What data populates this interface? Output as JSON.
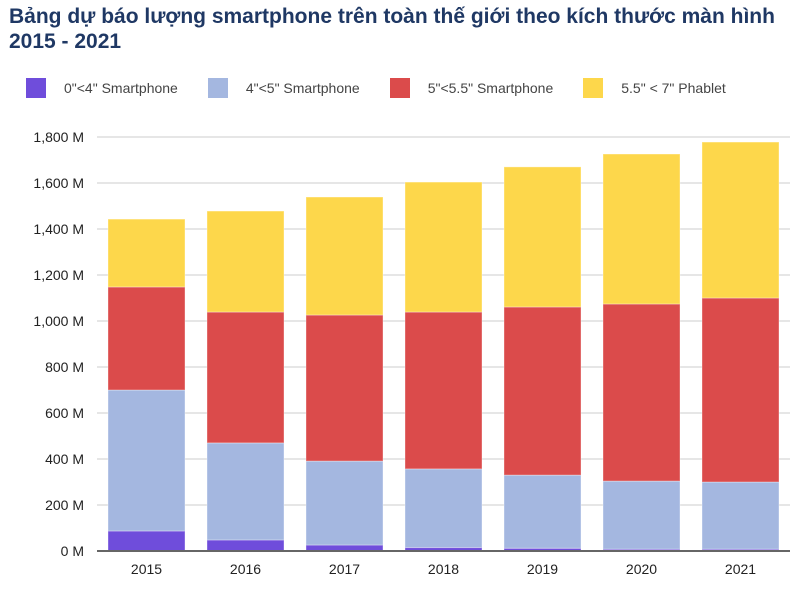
{
  "chart_data": {
    "type": "bar",
    "stacked": true,
    "title": "Bảng dự báo lượng smartphone trên toàn thế giới theo kích thước màn hình 2015 - 2021",
    "categories": [
      "2015",
      "2016",
      "2017",
      "2018",
      "2019",
      "2020",
      "2021"
    ],
    "series": [
      {
        "name": "0\"<4\" Smartphone",
        "color": "#6f4ddb",
        "values": [
          87,
          48,
          26,
          15,
          12,
          8,
          8
        ]
      },
      {
        "name": "4\"<5\" Smartphone",
        "color": "#a4b7e0",
        "values": [
          613,
          422,
          365,
          342,
          318,
          296,
          292
        ]
      },
      {
        "name": "5\"<5.5\" Smartphone",
        "color": "#db4b4b",
        "values": [
          448,
          569,
          635,
          682,
          731,
          770,
          800
        ]
      },
      {
        "name": "5.5\" < 7\" Phablet",
        "color": "#fdd74b",
        "values": [
          295,
          439,
          513,
          565,
          609,
          652,
          678
        ]
      }
    ],
    "yticks": [
      "0 M",
      "200 M",
      "400 M",
      "600 M",
      "800 M",
      "1,000 M",
      "1,200 M",
      "1,400 M",
      "1,600 M",
      "1,800 M"
    ],
    "ylim": [
      0,
      1800
    ],
    "grid": true,
    "legend": "top"
  }
}
